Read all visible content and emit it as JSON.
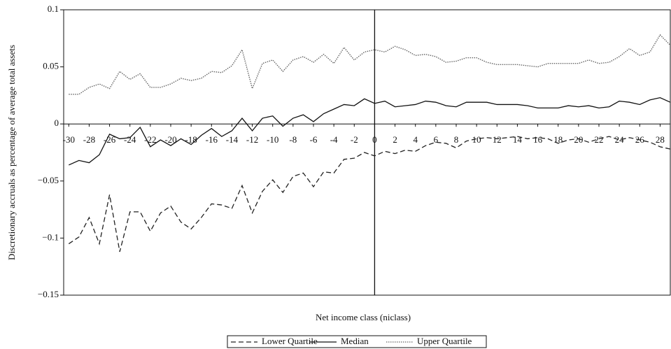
{
  "chart_data": {
    "type": "line",
    "xlabel": "Net income class (niclass)",
    "ylabel": "Discretionary accruals as percentage of average total assets",
    "x": [
      -30,
      -29,
      -28,
      -27,
      -26,
      -25,
      -24,
      -23,
      -22,
      -21,
      -20,
      -19,
      -18,
      -17,
      -16,
      -15,
      -14,
      -13,
      -12,
      -11,
      -10,
      -9,
      -8,
      -7,
      -6,
      -5,
      -4,
      -3,
      -2,
      -1,
      0,
      1,
      2,
      3,
      4,
      5,
      6,
      7,
      8,
      9,
      10,
      11,
      12,
      13,
      14,
      15,
      16,
      17,
      18,
      19,
      20,
      21,
      22,
      23,
      24,
      25,
      26,
      27,
      28,
      29
    ],
    "series": [
      {
        "name": "Lower Quartile",
        "color": "#222222",
        "dash": "dashed",
        "values": [
          -0.105,
          -0.099,
          -0.082,
          -0.105,
          -0.062,
          -0.112,
          -0.077,
          -0.077,
          -0.094,
          -0.078,
          -0.072,
          -0.086,
          -0.092,
          -0.082,
          -0.07,
          -0.071,
          -0.074,
          -0.054,
          -0.078,
          -0.059,
          -0.049,
          -0.06,
          -0.046,
          -0.043,
          -0.055,
          -0.042,
          -0.043,
          -0.031,
          -0.03,
          -0.025,
          -0.028,
          -0.024,
          -0.026,
          -0.023,
          -0.024,
          -0.019,
          -0.016,
          -0.017,
          -0.021,
          -0.015,
          -0.013,
          -0.012,
          -0.013,
          -0.012,
          -0.011,
          -0.013,
          -0.012,
          -0.013,
          -0.017,
          -0.014,
          -0.013,
          -0.016,
          -0.013,
          -0.011,
          -0.014,
          -0.012,
          -0.014,
          -0.016,
          -0.02,
          -0.022
        ]
      },
      {
        "name": "Median",
        "color": "#111111",
        "dash": "solid",
        "values": [
          -0.036,
          -0.032,
          -0.034,
          -0.027,
          -0.009,
          -0.013,
          -0.012,
          -0.003,
          -0.02,
          -0.014,
          -0.019,
          -0.013,
          -0.018,
          -0.01,
          -0.004,
          -0.011,
          -0.006,
          0.005,
          -0.006,
          0.005,
          0.007,
          -0.002,
          0.005,
          0.008,
          0.002,
          0.009,
          0.013,
          0.017,
          0.016,
          0.022,
          0.018,
          0.02,
          0.015,
          0.016,
          0.017,
          0.02,
          0.019,
          0.016,
          0.015,
          0.019,
          0.019,
          0.019,
          0.017,
          0.017,
          0.017,
          0.016,
          0.014,
          0.014,
          0.014,
          0.016,
          0.015,
          0.016,
          0.014,
          0.015,
          0.02,
          0.019,
          0.017,
          0.021,
          0.023,
          0.019
        ]
      },
      {
        "name": "Upper Quartile",
        "color": "#666666",
        "dash": "dotted",
        "values": [
          0.026,
          0.026,
          0.032,
          0.035,
          0.031,
          0.046,
          0.039,
          0.044,
          0.032,
          0.032,
          0.035,
          0.04,
          0.038,
          0.04,
          0.046,
          0.045,
          0.051,
          0.065,
          0.031,
          0.053,
          0.056,
          0.046,
          0.056,
          0.059,
          0.054,
          0.061,
          0.053,
          0.067,
          0.056,
          0.063,
          0.065,
          0.063,
          0.068,
          0.065,
          0.06,
          0.061,
          0.059,
          0.054,
          0.055,
          0.058,
          0.058,
          0.054,
          0.052,
          0.052,
          0.052,
          0.051,
          0.05,
          0.053,
          0.053,
          0.053,
          0.053,
          0.056,
          0.053,
          0.054,
          0.059,
          0.066,
          0.06,
          0.063,
          0.078,
          0.069
        ]
      }
    ],
    "xlim": [
      -30.5,
      29
    ],
    "xticks": [
      -30,
      -28,
      -26,
      -24,
      -22,
      -20,
      -18,
      -16,
      -14,
      -12,
      -10,
      -8,
      -6,
      -4,
      -2,
      0,
      2,
      4,
      6,
      8,
      10,
      12,
      14,
      16,
      18,
      20,
      22,
      24,
      26,
      28
    ],
    "ylim": [
      -0.15,
      0.1
    ],
    "yticks": [
      0.1,
      0.05,
      0,
      {
        "value": -0.05,
        "label": "−0.05"
      },
      {
        "value": -0.1,
        "label": "−0.1"
      },
      {
        "value": -0.15,
        "label": "−0.15"
      }
    ],
    "grid": false
  }
}
